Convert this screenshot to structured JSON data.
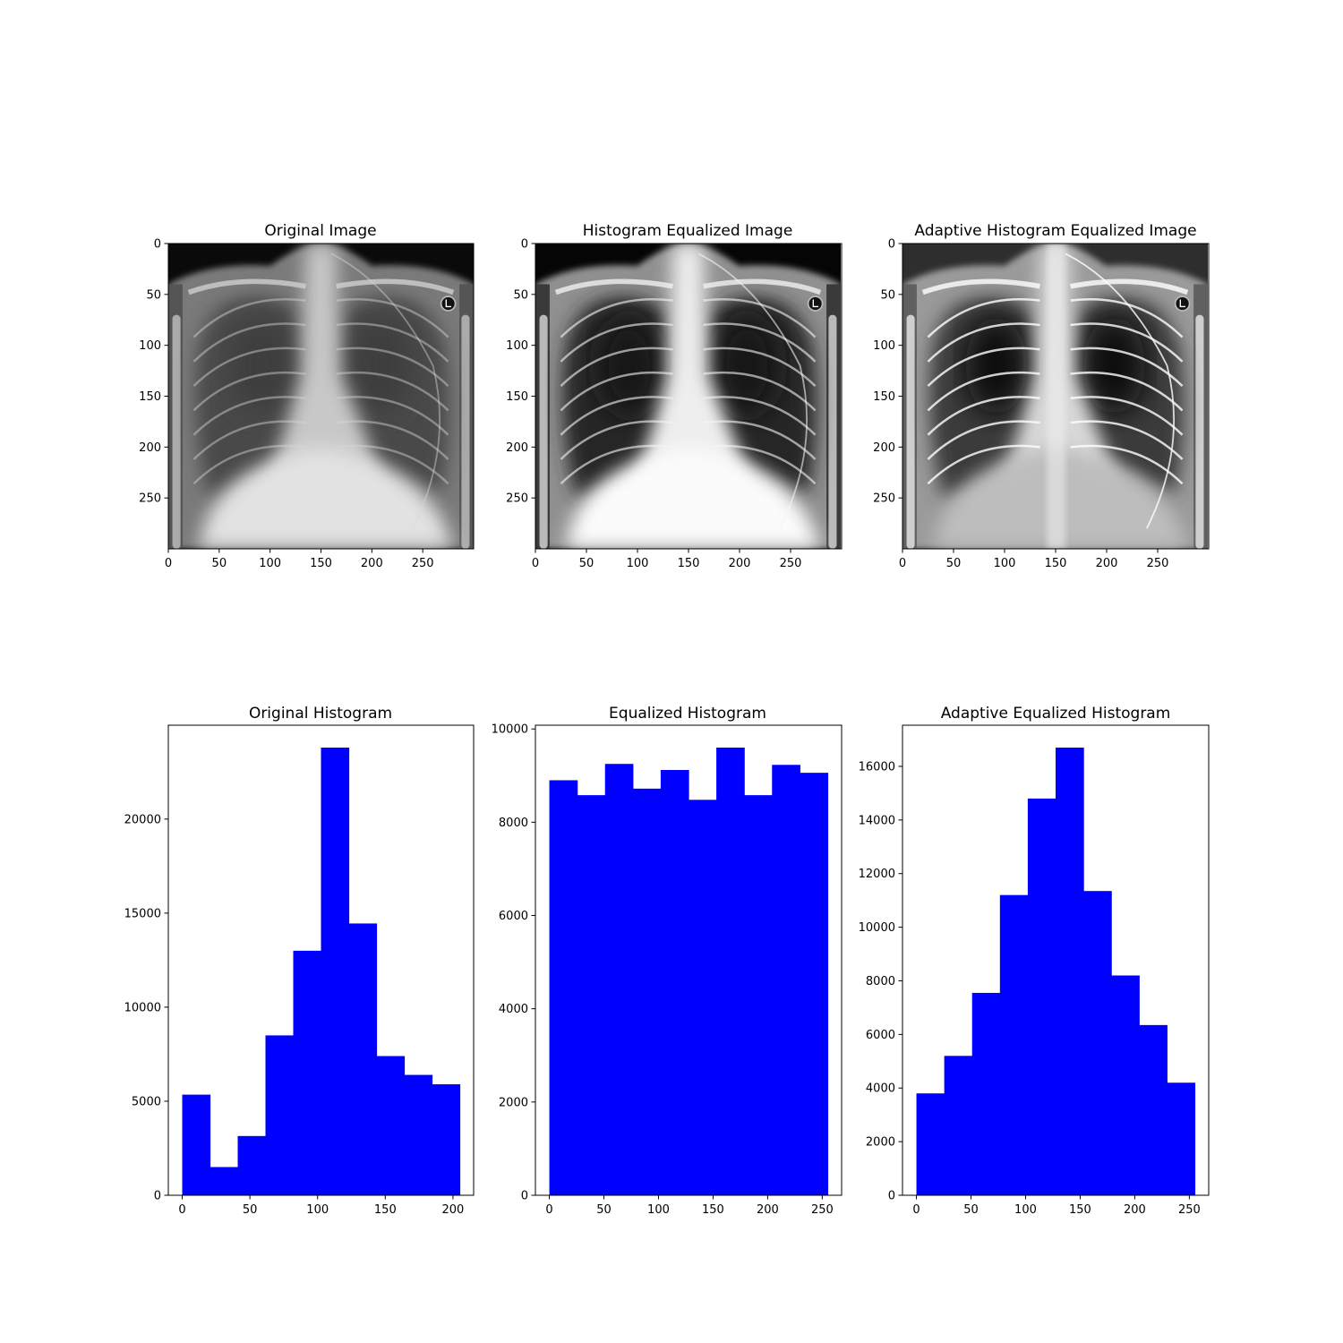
{
  "figure": {
    "panels": [
      {
        "title": "Original Image",
        "image_label": "chest-xray-original"
      },
      {
        "title": "Histogram Equalized Image",
        "image_label": "chest-xray-histogram-equalized"
      },
      {
        "title": "Adaptive Histogram Equalized Image",
        "image_label": "chest-xray-adaptive-equalized"
      }
    ]
  },
  "colors": {
    "bar": "#0000ff",
    "axis": "#000000",
    "background": "#ffffff"
  },
  "chart_data": [
    {
      "type": "image",
      "title": "Original Image",
      "xlim": [
        0,
        300
      ],
      "ylim": [
        300,
        0
      ],
      "xticks": [
        0,
        50,
        100,
        150,
        200,
        250
      ],
      "yticks": [
        0,
        50,
        100,
        150,
        200,
        250
      ],
      "style": "original"
    },
    {
      "type": "image",
      "title": "Histogram Equalized Image",
      "xlim": [
        0,
        300
      ],
      "ylim": [
        300,
        0
      ],
      "xticks": [
        0,
        50,
        100,
        150,
        200,
        250
      ],
      "yticks": [
        0,
        50,
        100,
        150,
        200,
        250
      ],
      "style": "equalized"
    },
    {
      "type": "image",
      "title": "Adaptive Histogram Equalized Image",
      "xlim": [
        0,
        300
      ],
      "ylim": [
        300,
        0
      ],
      "xticks": [
        0,
        50,
        100,
        150,
        200,
        250
      ],
      "yticks": [
        0,
        50,
        100,
        150,
        200,
        250
      ],
      "style": "adaptive"
    },
    {
      "type": "bar",
      "title": "Original Histogram",
      "bin_edges": [
        0,
        20.5,
        41,
        61.5,
        82,
        102.5,
        123,
        143.5,
        164,
        184.5,
        205
      ],
      "values": [
        5350,
        1500,
        3150,
        8500,
        13000,
        23800,
        14450,
        7400,
        6400,
        5900
      ],
      "xlim": [
        -10.25,
        215.25
      ],
      "ylim": [
        0,
        24990
      ],
      "xticks": [
        0,
        50,
        100,
        150,
        200
      ],
      "yticks": [
        0,
        5000,
        10000,
        15000,
        20000
      ]
    },
    {
      "type": "bar",
      "title": "Equalized Histogram",
      "bin_edges": [
        0,
        25.5,
        51,
        76.5,
        102,
        127.5,
        153,
        178.5,
        204,
        229.5,
        255
      ],
      "values": [
        8900,
        8580,
        9250,
        8720,
        9120,
        8480,
        9600,
        8580,
        9230,
        9060
      ],
      "xlim": [
        -12.75,
        267.75
      ],
      "ylim": [
        0,
        10080
      ],
      "xticks": [
        0,
        50,
        100,
        150,
        200,
        250
      ],
      "yticks": [
        0,
        2000,
        4000,
        6000,
        8000,
        10000
      ]
    },
    {
      "type": "bar",
      "title": "Adaptive Equalized Histogram",
      "bin_edges": [
        0,
        25.5,
        51,
        76.5,
        102,
        127.5,
        153,
        178.5,
        204,
        229.5,
        255
      ],
      "values": [
        3800,
        5200,
        7550,
        11200,
        14800,
        16700,
        11350,
        8200,
        6350,
        4200
      ],
      "xlim": [
        -12.75,
        267.75
      ],
      "ylim": [
        0,
        17535
      ],
      "xticks": [
        0,
        50,
        100,
        150,
        200,
        250
      ],
      "yticks": [
        0,
        2000,
        4000,
        6000,
        8000,
        10000,
        12000,
        14000,
        16000
      ]
    }
  ]
}
